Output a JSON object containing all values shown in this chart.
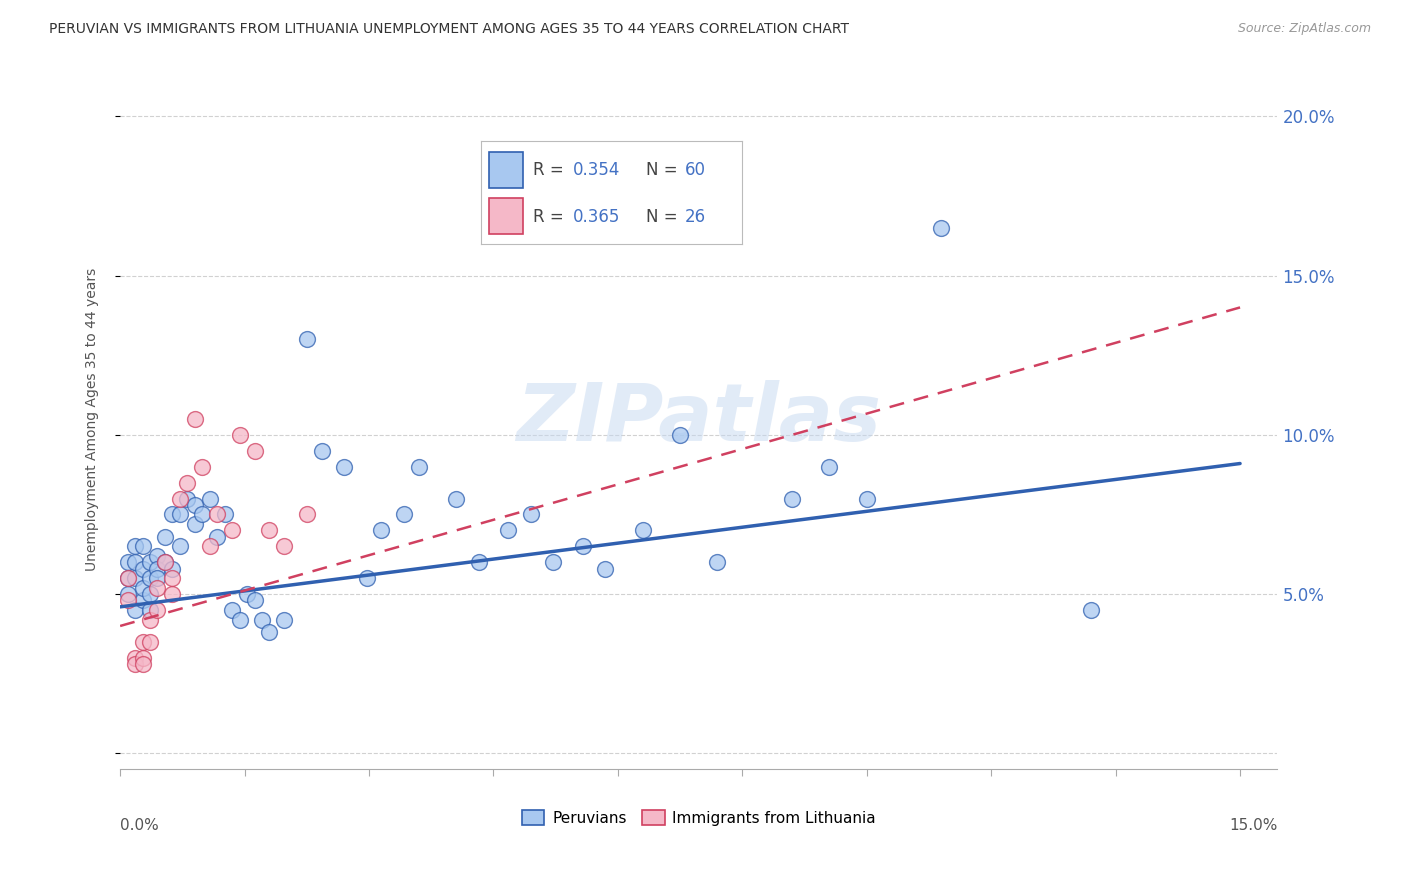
{
  "title": "PERUVIAN VS IMMIGRANTS FROM LITHUANIA UNEMPLOYMENT AMONG AGES 35 TO 44 YEARS CORRELATION CHART",
  "source": "Source: ZipAtlas.com",
  "ylabel": "Unemployment Among Ages 35 to 44 years",
  "xlim": [
    0.0,
    0.155
  ],
  "ylim": [
    -0.005,
    0.215
  ],
  "yticks": [
    0.0,
    0.05,
    0.1,
    0.15,
    0.2
  ],
  "ytick_labels": [
    "",
    "5.0%",
    "10.0%",
    "15.0%",
    "20.0%"
  ],
  "peruvians_R": 0.354,
  "peruvians_N": 60,
  "lithuania_R": 0.365,
  "lithuania_N": 26,
  "blue_color": "#a8c8f0",
  "pink_color": "#f5b8c8",
  "blue_line_color": "#3060b0",
  "pink_line_color": "#d04060",
  "blue_line_start": 0.046,
  "blue_line_end": 0.091,
  "pink_line_start": 0.04,
  "pink_line_end": 0.14,
  "peruvians_x": [
    0.001,
    0.001,
    0.001,
    0.002,
    0.002,
    0.002,
    0.002,
    0.003,
    0.003,
    0.003,
    0.003,
    0.004,
    0.004,
    0.004,
    0.004,
    0.005,
    0.005,
    0.005,
    0.006,
    0.006,
    0.007,
    0.007,
    0.008,
    0.008,
    0.009,
    0.01,
    0.01,
    0.011,
    0.012,
    0.013,
    0.014,
    0.015,
    0.016,
    0.017,
    0.018,
    0.019,
    0.02,
    0.022,
    0.025,
    0.027,
    0.03,
    0.033,
    0.035,
    0.038,
    0.04,
    0.045,
    0.048,
    0.052,
    0.055,
    0.058,
    0.062,
    0.065,
    0.07,
    0.075,
    0.08,
    0.09,
    0.095,
    0.1,
    0.11,
    0.13
  ],
  "peruvians_y": [
    0.055,
    0.06,
    0.05,
    0.045,
    0.055,
    0.06,
    0.065,
    0.048,
    0.052,
    0.058,
    0.065,
    0.045,
    0.05,
    0.055,
    0.06,
    0.062,
    0.058,
    0.055,
    0.06,
    0.068,
    0.058,
    0.075,
    0.065,
    0.075,
    0.08,
    0.072,
    0.078,
    0.075,
    0.08,
    0.068,
    0.075,
    0.045,
    0.042,
    0.05,
    0.048,
    0.042,
    0.038,
    0.042,
    0.13,
    0.095,
    0.09,
    0.055,
    0.07,
    0.075,
    0.09,
    0.08,
    0.06,
    0.07,
    0.075,
    0.06,
    0.065,
    0.058,
    0.07,
    0.1,
    0.06,
    0.08,
    0.09,
    0.08,
    0.165,
    0.045
  ],
  "lithuania_x": [
    0.001,
    0.001,
    0.002,
    0.002,
    0.003,
    0.003,
    0.003,
    0.004,
    0.004,
    0.005,
    0.005,
    0.006,
    0.007,
    0.007,
    0.008,
    0.009,
    0.01,
    0.011,
    0.012,
    0.013,
    0.015,
    0.016,
    0.018,
    0.02,
    0.022,
    0.025
  ],
  "lithuania_y": [
    0.055,
    0.048,
    0.03,
    0.028,
    0.035,
    0.03,
    0.028,
    0.035,
    0.042,
    0.045,
    0.052,
    0.06,
    0.05,
    0.055,
    0.08,
    0.085,
    0.105,
    0.09,
    0.065,
    0.075,
    0.07,
    0.1,
    0.095,
    0.07,
    0.065,
    0.075
  ],
  "watermark": "ZIPatlas",
  "background_color": "#ffffff",
  "grid_color": "#cccccc"
}
